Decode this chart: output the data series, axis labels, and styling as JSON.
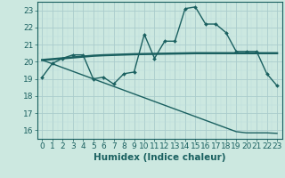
{
  "xlabel": "Humidex (Indice chaleur)",
  "x": [
    0,
    1,
    2,
    3,
    4,
    5,
    6,
    7,
    8,
    9,
    10,
    11,
    12,
    13,
    14,
    15,
    16,
    17,
    18,
    19,
    20,
    21,
    22,
    23
  ],
  "line1_y": [
    19.1,
    19.9,
    20.2,
    20.4,
    20.4,
    19.0,
    19.1,
    18.7,
    19.3,
    19.4,
    21.6,
    20.2,
    21.2,
    21.2,
    23.1,
    23.2,
    22.2,
    22.2,
    21.7,
    20.6,
    20.6,
    20.6,
    19.3,
    18.6
  ],
  "line2_y": [
    20.1,
    20.15,
    20.2,
    20.25,
    20.3,
    20.35,
    20.38,
    20.4,
    20.42,
    20.44,
    20.45,
    20.46,
    20.47,
    20.48,
    20.49,
    20.5,
    20.5,
    20.5,
    20.5,
    20.5,
    20.5,
    20.5,
    20.5,
    20.5
  ],
  "line3_y": [
    20.1,
    19.88,
    19.66,
    19.44,
    19.22,
    19.0,
    18.78,
    18.56,
    18.34,
    18.12,
    17.9,
    17.68,
    17.46,
    17.24,
    17.02,
    16.8,
    16.58,
    16.36,
    16.14,
    15.92,
    15.85,
    15.85,
    15.85,
    15.82
  ],
  "ylim": [
    15.5,
    23.5
  ],
  "yticks": [
    16,
    17,
    18,
    19,
    20,
    21,
    22,
    23
  ],
  "xlim": [
    -0.5,
    23.5
  ],
  "bg_color": "#cce8e0",
  "grid_color_major": "#aacccc",
  "grid_color_minor": "#bbdddd",
  "line_color": "#1a6060",
  "tick_label_fontsize": 6.5,
  "xlabel_fontsize": 7.5,
  "marker": "D",
  "marker_size": 2.0,
  "lw_main": 1.0,
  "lw_flat": 1.8,
  "lw_diag": 1.0
}
